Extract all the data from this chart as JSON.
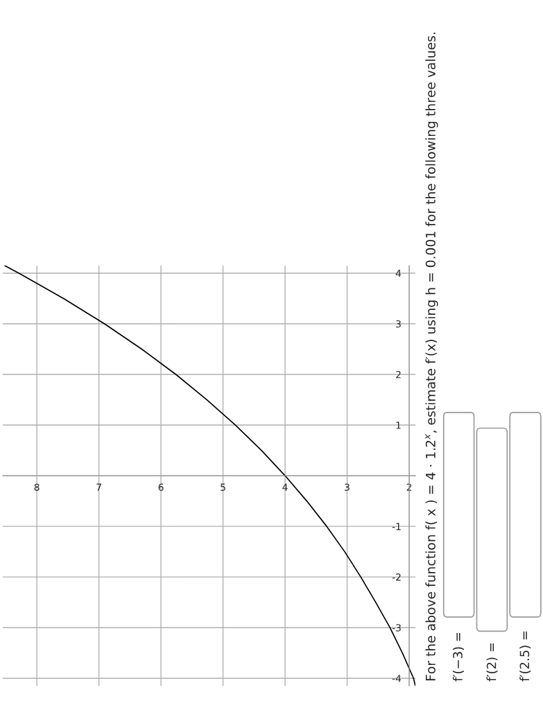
{
  "chart_data": {
    "type": "line",
    "x": [
      1.9,
      1.93,
      2.11,
      2.31,
      2.54,
      2.78,
      3.04,
      3.33,
      3.65,
      4,
      4.38,
      4.8,
      5.26,
      5.76,
      6.31,
      6.91,
      7.57,
      8.29,
      8.52
    ],
    "series": [
      {
        "color": "#000000",
        "values": [
          -4.15,
          -4,
          -3.5,
          -3,
          -2.5,
          -2,
          -1.5,
          -1,
          -0.5,
          0,
          0.5,
          1,
          1.5,
          2,
          2.5,
          3,
          3.5,
          4,
          4.15
        ]
      }
    ],
    "xlim": [
      8.55,
      1.9
    ],
    "ylim": [
      -4.15,
      4.15
    ],
    "xticks": [
      2,
      3,
      4,
      5,
      6,
      7,
      8
    ],
    "yticks": [
      -4,
      -3,
      -2,
      -1,
      {
        "value": 0,
        "label": null
      },
      1,
      2,
      3,
      4
    ],
    "grid": true,
    "annotations": [
      "For the above function f( x ) = 4 · 1.2$^{x}$, estimate f′(x) using h = 0.001 for the following three values.",
      "f′(−3) =",
      "f′(2) =",
      "f′(2.5) ="
    ]
  }
}
